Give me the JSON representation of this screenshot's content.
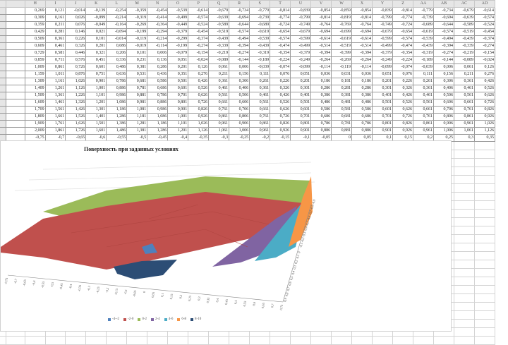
{
  "sheet": {
    "columns": [
      "H",
      "I",
      "J",
      "K",
      "L",
      "M",
      "N",
      "O",
      "P",
      "Q",
      "R",
      "S",
      "T",
      "U",
      "V",
      "W",
      "X",
      "Y",
      "Z",
      "AA",
      "AB",
      "AC",
      "AD"
    ],
    "rows": [
      [
        "0,269",
        "0,121",
        "-0,014",
        "-0,139",
        "-0,254",
        "-0,359",
        "-0,454",
        "-0,539",
        "-0,614",
        "-0,679",
        "-0,734",
        "-0,779",
        "-0,814",
        "-0,839",
        "-0,854",
        "-0,859",
        "-0,854",
        "-0,839",
        "-0,814",
        "-0,779",
        "-0,734",
        "-0,679",
        "-0,614"
      ],
      [
        "0,309",
        "0,161",
        "0,026",
        "-0,099",
        "-0,214",
        "-0,319",
        "-0,414",
        "-0,499",
        "-0,574",
        "-0,639",
        "-0,694",
        "-0,739",
        "-0,774",
        "-0,799",
        "-0,814",
        "-0,819",
        "-0,814",
        "-0,799",
        "-0,774",
        "-0,739",
        "-0,694",
        "-0,639",
        "-0,574"
      ],
      [
        "0,359",
        "0,211",
        "0,076",
        "-0,049",
        "-0,164",
        "-0,269",
        "-0,364",
        "-0,449",
        "-0,524",
        "-0,589",
        "-0,644",
        "-0,689",
        "-0,724",
        "-0,749",
        "-0,764",
        "-0,769",
        "-0,764",
        "-0,749",
        "-0,724",
        "-0,689",
        "-0,644",
        "-0,589",
        "-0,524"
      ],
      [
        "0,429",
        "0,281",
        "0,146",
        "0,021",
        "-0,094",
        "-0,199",
        "-0,294",
        "-0,379",
        "-0,454",
        "-0,519",
        "-0,574",
        "-0,619",
        "-0,654",
        "-0,679",
        "-0,694",
        "-0,699",
        "-0,694",
        "-0,679",
        "-0,654",
        "-0,619",
        "-0,574",
        "-0,519",
        "-0,454"
      ],
      [
        "0,509",
        "0,361",
        "0,226",
        "0,101",
        "-0,014",
        "-0,119",
        "-0,214",
        "-0,299",
        "-0,374",
        "-0,439",
        "-0,494",
        "-0,539",
        "-0,574",
        "-0,599",
        "-0,614",
        "-0,619",
        "-0,614",
        "-0,599",
        "-0,574",
        "-0,539",
        "-0,494",
        "-0,439",
        "-0,374"
      ],
      [
        "0,609",
        "0,461",
        "0,326",
        "0,201",
        "0,086",
        "-0,019",
        "-0,114",
        "-0,199",
        "-0,274",
        "-0,339",
        "-0,394",
        "-0,439",
        "-0,474",
        "-0,499",
        "-0,514",
        "-0,519",
        "-0,514",
        "-0,499",
        "-0,474",
        "-0,439",
        "-0,394",
        "-0,339",
        "-0,274"
      ],
      [
        "0,729",
        "0,581",
        "0,446",
        "0,321",
        "0,206",
        "0,101",
        "0,006",
        "-0,079",
        "-0,154",
        "-0,219",
        "-0,274",
        "-0,319",
        "-0,354",
        "-0,379",
        "-0,394",
        "-0,399",
        "-0,394",
        "-0,379",
        "-0,354",
        "-0,319",
        "-0,274",
        "-0,219",
        "-0,154"
      ],
      [
        "0,859",
        "0,711",
        "0,576",
        "0,451",
        "0,336",
        "0,231",
        "0,136",
        "0,051",
        "-0,024",
        "-0,089",
        "-0,144",
        "-0,189",
        "-0,224",
        "-0,249",
        "-0,264",
        "-0,269",
        "-0,264",
        "-0,249",
        "-0,224",
        "-0,189",
        "-0,144",
        "-0,089",
        "-0,024"
      ],
      [
        "1,009",
        "0,861",
        "0,726",
        "0,601",
        "0,486",
        "0,381",
        "0,286",
        "0,201",
        "0,126",
        "0,061",
        "0,006",
        "-0,039",
        "-0,074",
        "-0,099",
        "-0,114",
        "-0,119",
        "-0,114",
        "-0,099",
        "-0,074",
        "-0,039",
        "0,006",
        "0,061",
        "0,126"
      ],
      [
        "1,159",
        "1,011",
        "0,876",
        "0,751",
        "0,636",
        "0,531",
        "0,436",
        "0,351",
        "0,276",
        "0,211",
        "0,156",
        "0,111",
        "0,076",
        "0,051",
        "0,036",
        "0,031",
        "0,036",
        "0,051",
        "0,076",
        "0,111",
        "0,156",
        "0,211",
        "0,276"
      ],
      [
        "1,309",
        "1,161",
        "1,026",
        "0,901",
        "0,786",
        "0,681",
        "0,586",
        "0,501",
        "0,426",
        "0,361",
        "0,306",
        "0,261",
        "0,226",
        "0,201",
        "0,186",
        "0,181",
        "0,186",
        "0,201",
        "0,226",
        "0,261",
        "0,306",
        "0,361",
        "0,426"
      ],
      [
        "1,409",
        "1,261",
        "1,126",
        "1,001",
        "0,886",
        "0,781",
        "0,686",
        "0,601",
        "0,526",
        "0,461",
        "0,406",
        "0,361",
        "0,326",
        "0,301",
        "0,286",
        "0,281",
        "0,286",
        "0,301",
        "0,326",
        "0,361",
        "0,406",
        "0,461",
        "0,526"
      ],
      [
        "1,509",
        "1,361",
        "1,226",
        "1,101",
        "0,986",
        "0,881",
        "0,786",
        "0,701",
        "0,626",
        "0,561",
        "0,506",
        "0,461",
        "0,426",
        "0,401",
        "0,386",
        "0,381",
        "0,386",
        "0,401",
        "0,426",
        "0,461",
        "0,506",
        "0,561",
        "0,626"
      ],
      [
        "1,609",
        "1,461",
        "1,326",
        "1,201",
        "1,086",
        "0,981",
        "0,886",
        "0,801",
        "0,726",
        "0,661",
        "0,606",
        "0,561",
        "0,526",
        "0,501",
        "0,486",
        "0,481",
        "0,486",
        "0,501",
        "0,526",
        "0,561",
        "0,606",
        "0,661",
        "0,726"
      ],
      [
        "1,709",
        "1,561",
        "1,426",
        "1,301",
        "1,186",
        "1,081",
        "0,986",
        "0,901",
        "0,826",
        "0,761",
        "0,706",
        "0,661",
        "0,626",
        "0,601",
        "0,586",
        "0,581",
        "0,586",
        "0,601",
        "0,626",
        "0,661",
        "0,706",
        "0,761",
        "0,826"
      ],
      [
        "1,809",
        "1,661",
        "1,526",
        "1,401",
        "1,286",
        "1,181",
        "1,086",
        "1,001",
        "0,926",
        "0,861",
        "0,806",
        "0,761",
        "0,726",
        "0,701",
        "0,686",
        "0,681",
        "0,686",
        "0,701",
        "0,726",
        "0,761",
        "0,806",
        "0,861",
        "0,926"
      ],
      [
        "1,909",
        "1,761",
        "1,626",
        "1,501",
        "1,386",
        "1,281",
        "1,186",
        "1,101",
        "1,026",
        "0,961",
        "0,906",
        "0,861",
        "0,826",
        "0,801",
        "0,786",
        "0,781",
        "0,786",
        "0,801",
        "0,826",
        "0,861",
        "0,906",
        "0,961",
        "1,026"
      ],
      [
        "2,009",
        "1,861",
        "1,726",
        "1,601",
        "1,486",
        "1,381",
        "1,286",
        "1,201",
        "1,126",
        "1,061",
        "1,006",
        "0,961",
        "0,926",
        "0,901",
        "0,886",
        "0,881",
        "0,886",
        "0,901",
        "0,926",
        "0,961",
        "1,006",
        "1,061",
        "1,126"
      ],
      [
        "-0,75",
        "-0,7",
        "-0,65",
        "-0,6",
        "-0,55",
        "-0,5",
        "-0,45",
        "-0,4",
        "-0,35",
        "-0,3",
        "-0,25",
        "-0,2",
        "-0,15",
        "-0,1",
        "-0,05",
        "0",
        "0,05",
        "0,1",
        "0,15",
        "0,2",
        "0,25",
        "0,3",
        "0,35"
      ]
    ]
  },
  "chart": {
    "title": "Поверхность при заданных условиях",
    "type": "surface-3d",
    "x_ticks": [
      "-0,75",
      "-0,7",
      "-0,65",
      "-0,6",
      "-0,55",
      "-0,5",
      "-0,45",
      "-0,4",
      "-0,35",
      "-0,3",
      "-0,25",
      "-0,2",
      "-0,15",
      "-0,1",
      "-0,05",
      "0",
      "0,05",
      "0,1",
      "0,15",
      "0,2",
      "0,25",
      "0,3",
      "0,35",
      "0,4",
      "0,45",
      "0,5",
      "0,55",
      "0,6",
      "0,65",
      "0,7",
      "0,75"
    ],
    "depth_ticks": [
      "-0,9",
      "-0,8",
      "-0,7",
      "-0,6",
      "-0,5",
      "-0,4",
      "-0,3",
      "-0,2",
      "-0,1",
      "0",
      "0,1",
      "0,2",
      "0,3",
      "0,4",
      "0,5",
      "0,6",
      "0,7",
      "0,8",
      "0,9"
    ],
    "legend": [
      {
        "label": "-4--2",
        "color": "#4f81bd"
      },
      {
        "label": "-2-0",
        "color": "#c0504d"
      },
      {
        "label": "0-2",
        "color": "#9bbb59"
      },
      {
        "label": "2-4",
        "color": "#8064a2"
      },
      {
        "label": "4-6",
        "color": "#4bacc6"
      },
      {
        "label": "6-8",
        "color": "#f79646"
      },
      {
        "label": "8-10",
        "color": "#2c4d75"
      }
    ]
  }
}
